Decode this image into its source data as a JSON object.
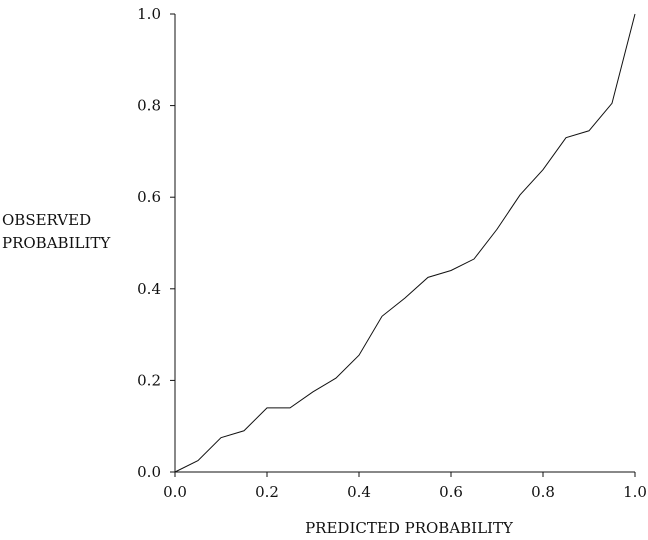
{
  "chart_data": {
    "type": "line",
    "xlabel": "PREDICTED PROBABILITY",
    "ylabel_lines": [
      "OBSERVED",
      "PROBABILITY"
    ],
    "xlim": [
      0.0,
      1.0
    ],
    "ylim": [
      0.0,
      1.0
    ],
    "xticks": [
      "0.0",
      "0.2",
      "0.4",
      "0.6",
      "0.8",
      "1.0"
    ],
    "yticks": [
      "0.0",
      "0.2",
      "0.4",
      "0.6",
      "0.8",
      "1.0"
    ],
    "grid": false,
    "line_color": "#111111",
    "series": [
      {
        "x": [
          0.0,
          0.05,
          0.1,
          0.15,
          0.2,
          0.25,
          0.3,
          0.35,
          0.4,
          0.45,
          0.5,
          0.55,
          0.6,
          0.65,
          0.7,
          0.75,
          0.8,
          0.85,
          0.9,
          0.95,
          1.0
        ],
        "values": [
          0.0,
          0.025,
          0.075,
          0.09,
          0.14,
          0.14,
          0.175,
          0.205,
          0.255,
          0.34,
          0.38,
          0.425,
          0.44,
          0.465,
          0.53,
          0.605,
          0.66,
          0.73,
          0.745,
          0.805,
          1.0
        ]
      }
    ]
  }
}
